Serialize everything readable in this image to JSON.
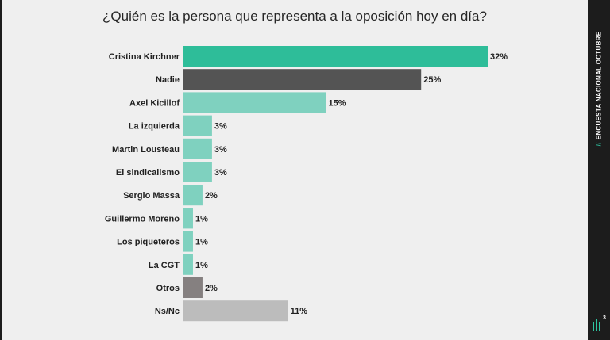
{
  "chart_data": {
    "type": "bar",
    "orientation": "horizontal",
    "title": "¿Quién es la persona que representa a la oposición hoy en día?",
    "categories": [
      "Cristina Kirchner",
      "Nadie",
      "Axel Kicillof",
      "La izquierda",
      "Martin Lousteau",
      "El sindicalismo",
      "Sergio Massa",
      "Guillermo Moreno",
      "Los piqueteros",
      "La CGT",
      "Otros",
      "Ns/Nc"
    ],
    "values": [
      32,
      25,
      15,
      3,
      3,
      3,
      2,
      1,
      1,
      1,
      2,
      11
    ],
    "value_labels": [
      "32%",
      "25%",
      "15%",
      "3%",
      "3%",
      "3%",
      "2%",
      "1%",
      "1%",
      "1%",
      "2%",
      "11%"
    ],
    "bar_colors": [
      "#2ebd99",
      "#545454",
      "#7fd1bf",
      "#7fd1bf",
      "#7fd1bf",
      "#7fd1bf",
      "#7fd1bf",
      "#7fd1bf",
      "#7fd1bf",
      "#7fd1bf",
      "#858080",
      "#bcbcbc"
    ],
    "unit": "%",
    "xlim": [
      0,
      32
    ],
    "grid": false,
    "legend": "none"
  },
  "sidebar": {
    "slash": "//",
    "label": "ENCUESTA NACIONAL OCTUBRE",
    "logo_superscript": "3",
    "accent_color": "#2ec4a0"
  }
}
